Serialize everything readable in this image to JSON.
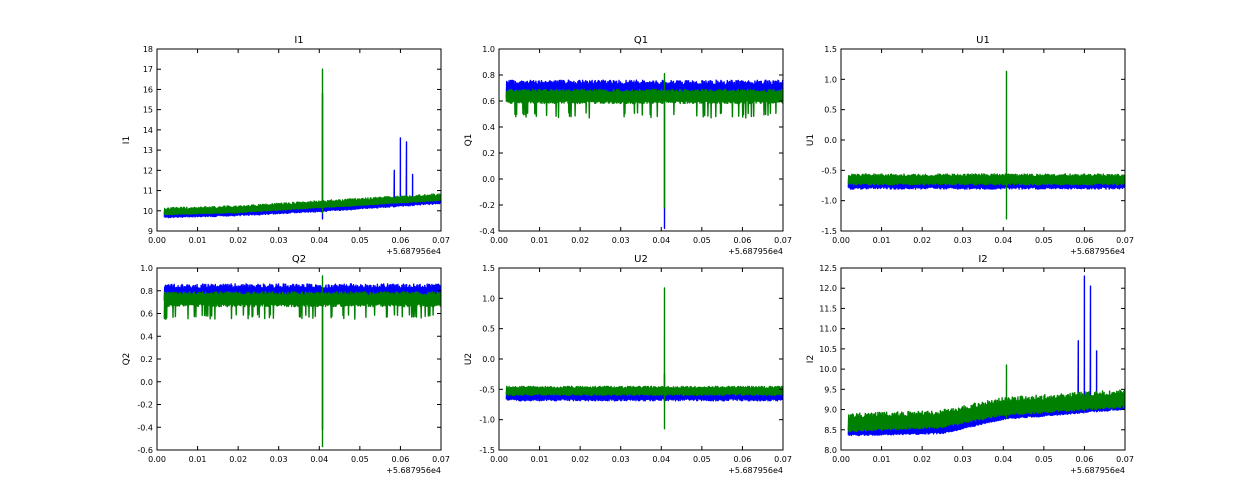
{
  "figure": {
    "background": "#ffffff"
  },
  "colors": {
    "series_1": "#0000ff",
    "series_2": "#008000"
  },
  "chart_data": [
    {
      "type": "line",
      "title": "I1",
      "ylabel": "I1",
      "x_offset_label": "+5.687956e4",
      "xlim": [
        0.0,
        0.07
      ],
      "ylim": [
        9,
        18
      ],
      "xticks": [
        "0.00",
        "0.01",
        "0.02",
        "0.03",
        "0.04",
        "0.05",
        "0.06",
        "0.07"
      ],
      "yticks": [
        "9",
        "10",
        "11",
        "12",
        "13",
        "14",
        "15",
        "16",
        "17",
        "18"
      ],
      "series": [
        {
          "color": "#0000ff",
          "trend": [
            [
              0.002,
              9.8
            ],
            [
              0.02,
              9.9
            ],
            [
              0.04,
              10.1
            ],
            [
              0.07,
              10.5
            ]
          ],
          "band": [
            -0.15,
            0.15
          ],
          "dips": [],
          "spikes": [
            [
              0.0408,
              15.8,
              9.6
            ],
            [
              0.0585,
              12.0,
              10.3
            ],
            [
              0.06,
              13.6,
              10.3
            ],
            [
              0.0615,
              13.4,
              10.3
            ],
            [
              0.063,
              11.8,
              10.3
            ]
          ]
        },
        {
          "color": "#008000",
          "trend": [
            [
              0.002,
              9.9
            ],
            [
              0.02,
              10.0
            ],
            [
              0.04,
              10.25
            ],
            [
              0.07,
              10.6
            ]
          ],
          "band": [
            -0.1,
            0.25
          ],
          "dips": [],
          "spikes": [
            [
              0.0408,
              17.0,
              9.9
            ]
          ]
        }
      ]
    },
    {
      "type": "line",
      "title": "Q1",
      "ylabel": "Q1",
      "x_offset_label": "+5.687956e4",
      "xlim": [
        0.0,
        0.07
      ],
      "ylim": [
        -0.4,
        1.0
      ],
      "xticks": [
        "0.00",
        "0.01",
        "0.02",
        "0.03",
        "0.04",
        "0.05",
        "0.06",
        "0.07"
      ],
      "yticks": [
        "-0.4",
        "-0.2",
        "0.0",
        "0.2",
        "0.4",
        "0.6",
        "0.8",
        "1.0"
      ],
      "series": [
        {
          "color": "#0000ff",
          "trend": [
            [
              0.002,
              0.68
            ],
            [
              0.07,
              0.68
            ]
          ],
          "band": [
            -0.08,
            0.08
          ],
          "dips": [],
          "spikes": [
            [
              0.0408,
              0.72,
              -0.38
            ]
          ]
        },
        {
          "color": "#008000",
          "trend": [
            [
              0.002,
              0.63
            ],
            [
              0.07,
              0.63
            ]
          ],
          "band": [
            -0.05,
            0.06
          ],
          "dips": [
            0.47,
            0.13
          ],
          "spikes": [
            [
              0.0408,
              0.81,
              -0.22
            ]
          ]
        }
      ]
    },
    {
      "type": "line",
      "title": "U1",
      "ylabel": "U1",
      "x_offset_label": "+5.687956e4",
      "xlim": [
        0.0,
        0.07
      ],
      "ylim": [
        -1.5,
        1.5
      ],
      "xticks": [
        "0.00",
        "0.01",
        "0.02",
        "0.03",
        "0.04",
        "0.05",
        "0.06",
        "0.07"
      ],
      "yticks": [
        "-1.5",
        "-1.0",
        "-0.5",
        "0.0",
        "0.5",
        "1.0",
        "1.5"
      ],
      "series": [
        {
          "color": "#0000ff",
          "trend": [
            [
              0.002,
              -0.72
            ],
            [
              0.07,
              -0.72
            ]
          ],
          "band": [
            -0.09,
            0.08
          ],
          "dips": [],
          "spikes": []
        },
        {
          "color": "#008000",
          "trend": [
            [
              0.002,
              -0.66
            ],
            [
              0.07,
              -0.66
            ]
          ],
          "band": [
            -0.08,
            0.1
          ],
          "dips": [],
          "spikes": [
            [
              0.0408,
              1.13,
              -1.3
            ]
          ]
        }
      ]
    },
    {
      "type": "line",
      "title": "Q2",
      "ylabel": "Q2",
      "x_offset_label": "+5.687956e4",
      "xlim": [
        0.0,
        0.07
      ],
      "ylim": [
        -0.6,
        1.0
      ],
      "xticks": [
        "0.00",
        "0.01",
        "0.02",
        "0.03",
        "0.04",
        "0.05",
        "0.06",
        "0.07"
      ],
      "yticks": [
        "-0.6",
        "-0.4",
        "-0.2",
        "0.0",
        "0.2",
        "0.4",
        "0.6",
        "0.8",
        "1.0"
      ],
      "series": [
        {
          "color": "#0000ff",
          "trend": [
            [
              0.002,
              0.77
            ],
            [
              0.07,
              0.77
            ]
          ],
          "band": [
            -0.08,
            0.09
          ],
          "dips": [],
          "spikes": [
            [
              0.0408,
              0.8,
              -0.42
            ]
          ]
        },
        {
          "color": "#008000",
          "trend": [
            [
              0.002,
              0.72
            ],
            [
              0.07,
              0.72
            ]
          ],
          "band": [
            -0.06,
            0.07
          ],
          "dips": [
            0.55,
            0.16
          ],
          "spikes": [
            [
              0.0408,
              0.93,
              -0.57
            ]
          ]
        }
      ]
    },
    {
      "type": "line",
      "title": "U2",
      "ylabel": "U2",
      "x_offset_label": "+5.687956e4",
      "xlim": [
        0.0,
        0.07
      ],
      "ylim": [
        -1.5,
        1.5
      ],
      "xticks": [
        "0.00",
        "0.01",
        "0.02",
        "0.03",
        "0.04",
        "0.05",
        "0.06",
        "0.07"
      ],
      "yticks": [
        "-1.5",
        "-1.0",
        "-0.5",
        "0.0",
        "0.5",
        "1.0",
        "1.5"
      ],
      "series": [
        {
          "color": "#0000ff",
          "trend": [
            [
              0.002,
              -0.6
            ],
            [
              0.07,
              -0.6
            ]
          ],
          "band": [
            -0.09,
            0.08
          ],
          "dips": [],
          "spikes": [
            [
              0.0408,
              -0.25,
              -0.7
            ]
          ]
        },
        {
          "color": "#008000",
          "trend": [
            [
              0.002,
              -0.53
            ],
            [
              0.07,
              -0.53
            ]
          ],
          "band": [
            -0.07,
            0.08
          ],
          "dips": [],
          "spikes": [
            [
              0.0408,
              1.17,
              -1.15
            ]
          ]
        }
      ]
    },
    {
      "type": "line",
      "title": "I2",
      "ylabel": "I2",
      "x_offset_label": "+5.687956e4",
      "xlim": [
        0.0,
        0.07
      ],
      "ylim": [
        8.0,
        12.5
      ],
      "xticks": [
        "0.00",
        "0.01",
        "0.02",
        "0.03",
        "0.04",
        "0.05",
        "0.06",
        "0.07"
      ],
      "yticks": [
        "8.0",
        "8.5",
        "9.0",
        "9.5",
        "10.0",
        "10.5",
        "11.0",
        "11.5",
        "12.0",
        "12.5"
      ],
      "series": [
        {
          "color": "#0000ff",
          "trend": [
            [
              0.002,
              8.45
            ],
            [
              0.025,
              8.5
            ],
            [
              0.04,
              8.85
            ],
            [
              0.07,
              9.1
            ]
          ],
          "band": [
            -0.1,
            0.12
          ],
          "dips": [],
          "spikes": [
            [
              0.0585,
              10.7,
              9.0
            ],
            [
              0.06,
              12.3,
              9.0
            ],
            [
              0.0615,
              12.05,
              9.0
            ],
            [
              0.063,
              10.45,
              9.0
            ]
          ]
        },
        {
          "color": "#008000",
          "trend": [
            [
              0.002,
              8.6
            ],
            [
              0.025,
              8.7
            ],
            [
              0.04,
              9.0
            ],
            [
              0.07,
              9.2
            ]
          ],
          "band": [
            -0.15,
            0.3
          ],
          "dips": [],
          "spikes": [
            [
              0.0408,
              10.1,
              8.8
            ]
          ]
        }
      ]
    }
  ]
}
